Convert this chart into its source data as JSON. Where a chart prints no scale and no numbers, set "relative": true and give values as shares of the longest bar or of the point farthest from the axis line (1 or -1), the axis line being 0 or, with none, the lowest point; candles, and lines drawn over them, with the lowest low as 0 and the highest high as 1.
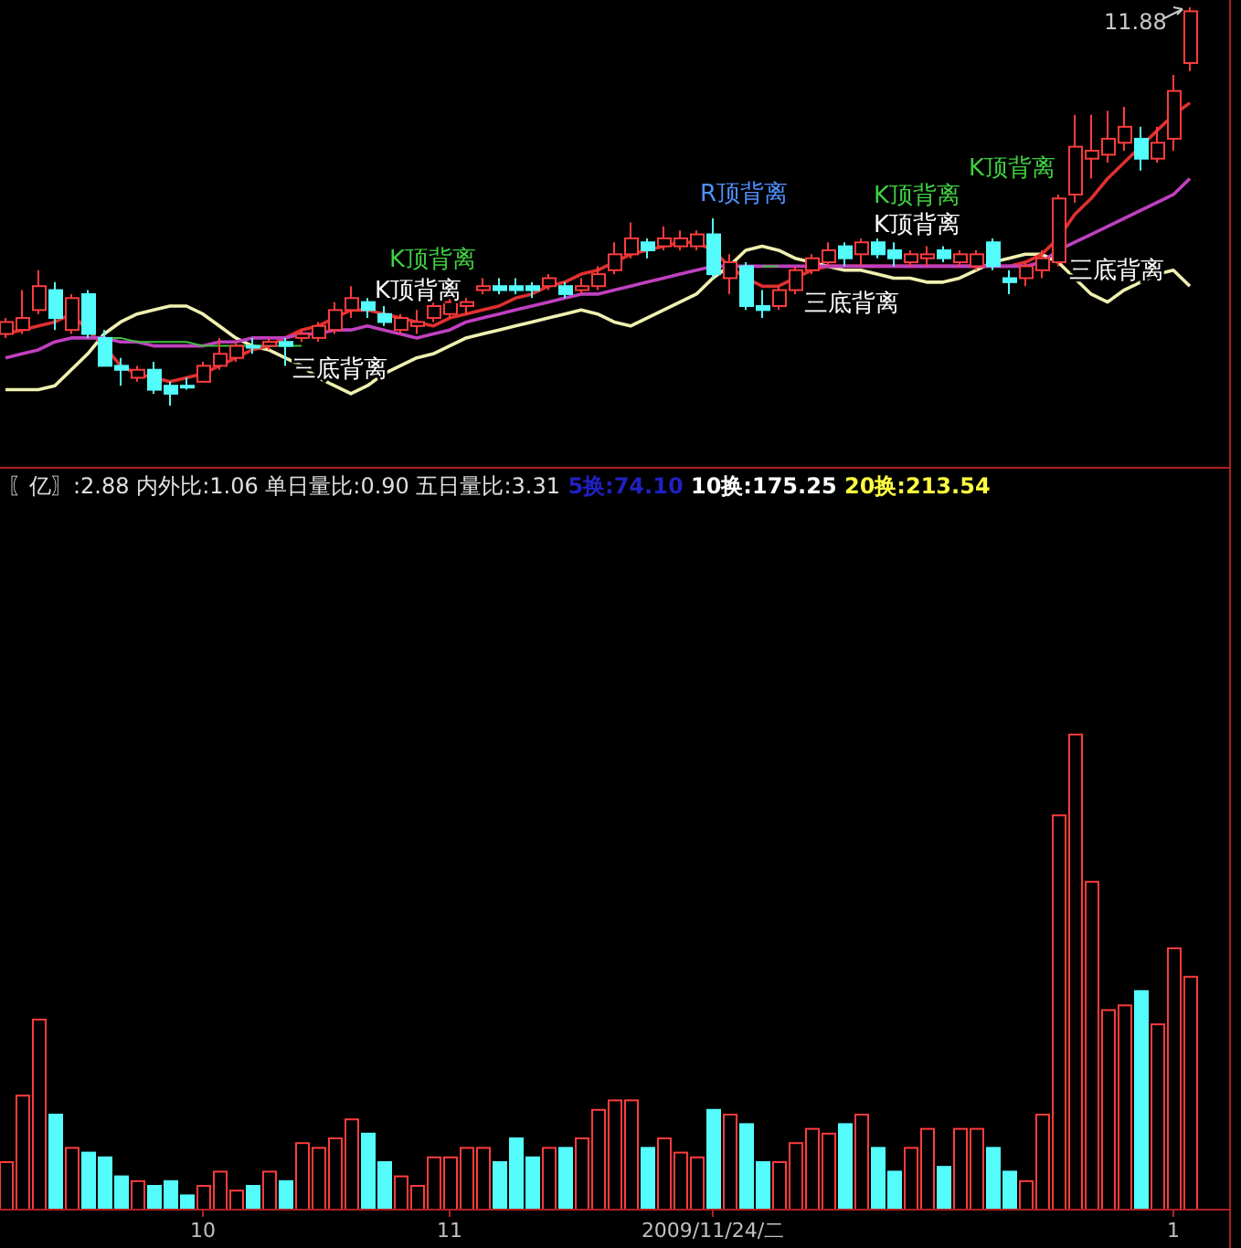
{
  "chart_data": [
    {
      "type": "candlestick",
      "relative": true,
      "categories": [
        null,
        null,
        null,
        null,
        null,
        null,
        null,
        null,
        null,
        null,
        null,
        null,
        null,
        null,
        null,
        null,
        null,
        null,
        null,
        null,
        null,
        null,
        null,
        null,
        null,
        null,
        null,
        null,
        null,
        null,
        null,
        null,
        null,
        null,
        null,
        null,
        null,
        null,
        null,
        null,
        null,
        null,
        null,
        null,
        null,
        null,
        null,
        null,
        null,
        null,
        null,
        null,
        null,
        null,
        null,
        null,
        null,
        null,
        null,
        null,
        null,
        null,
        null,
        null,
        null,
        null,
        null,
        null,
        null,
        null,
        null,
        null,
        null
      ],
      "ohlc": [
        [
          0.18,
          0.22,
          0.17,
          0.21
        ],
        [
          0.19,
          0.29,
          0.18,
          0.22
        ],
        [
          0.24,
          0.34,
          0.23,
          0.3
        ],
        [
          0.29,
          0.31,
          0.19,
          0.22
        ],
        [
          0.19,
          0.28,
          0.18,
          0.27
        ],
        [
          0.28,
          0.29,
          0.17,
          0.18
        ],
        [
          0.17,
          0.19,
          0.1,
          0.1
        ],
        [
          0.1,
          0.12,
          0.05,
          0.09
        ],
        [
          0.07,
          0.1,
          0.06,
          0.09
        ],
        [
          0.09,
          0.11,
          0.03,
          0.04
        ],
        [
          0.05,
          0.06,
          0,
          0.03
        ],
        [
          0.05,
          0.07,
          0.04,
          0.05
        ],
        [
          0.06,
          0.11,
          0.06,
          0.1
        ],
        [
          0.1,
          0.17,
          0.09,
          0.13
        ],
        [
          0.12,
          0.16,
          0.11,
          0.15
        ],
        [
          0.15,
          0.17,
          0.13,
          0.15
        ],
        [
          0.15,
          0.17,
          0.14,
          0.16
        ],
        [
          0.16,
          0.17,
          0.1,
          0.15
        ],
        [
          0.17,
          0.19,
          0.16,
          0.18
        ],
        [
          0.17,
          0.21,
          0.16,
          0.2
        ],
        [
          0.19,
          0.26,
          0.18,
          0.24
        ],
        [
          0.24,
          0.3,
          0.22,
          0.27
        ],
        [
          0.26,
          0.27,
          0.22,
          0.24
        ],
        [
          0.23,
          0.25,
          0.2,
          0.21
        ],
        [
          0.19,
          0.23,
          0.18,
          0.22
        ],
        [
          0.2,
          0.24,
          0.18,
          0.21
        ],
        [
          0.22,
          0.26,
          0.21,
          0.25
        ],
        [
          0.23,
          0.28,
          0.22,
          0.26
        ],
        [
          0.25,
          0.27,
          0.23,
          0.26
        ],
        [
          0.29,
          0.32,
          0.28,
          0.3
        ],
        [
          0.3,
          0.32,
          0.28,
          0.29
        ],
        [
          0.3,
          0.32,
          0.28,
          0.29
        ],
        [
          0.3,
          0.31,
          0.27,
          0.29
        ],
        [
          0.3,
          0.33,
          0.29,
          0.32
        ],
        [
          0.3,
          0.31,
          0.27,
          0.28
        ],
        [
          0.29,
          0.32,
          0.28,
          0.3
        ],
        [
          0.3,
          0.35,
          0.29,
          0.33
        ],
        [
          0.34,
          0.41,
          0.33,
          0.38
        ],
        [
          0.38,
          0.46,
          0.37,
          0.42
        ],
        [
          0.41,
          0.42,
          0.37,
          0.39
        ],
        [
          0.4,
          0.45,
          0.39,
          0.42
        ],
        [
          0.4,
          0.44,
          0.39,
          0.42
        ],
        [
          0.4,
          0.44,
          0.39,
          0.43
        ],
        [
          0.43,
          0.47,
          0.32,
          0.33
        ],
        [
          0.32,
          0.38,
          0.28,
          0.36
        ],
        [
          0.35,
          0.36,
          0.24,
          0.25
        ],
        [
          0.25,
          0.29,
          0.22,
          0.24
        ],
        [
          0.25,
          0.3,
          0.24,
          0.29
        ],
        [
          0.29,
          0.35,
          0.28,
          0.34
        ],
        [
          0.34,
          0.38,
          0.33,
          0.37
        ],
        [
          0.36,
          0.41,
          0.35,
          0.39
        ],
        [
          0.4,
          0.41,
          0.35,
          0.37
        ],
        [
          0.38,
          0.42,
          0.35,
          0.41
        ],
        [
          0.41,
          0.42,
          0.37,
          0.38
        ],
        [
          0.39,
          0.41,
          0.35,
          0.37
        ],
        [
          0.36,
          0.39,
          0.35,
          0.38
        ],
        [
          0.37,
          0.4,
          0.35,
          0.38
        ],
        [
          0.39,
          0.4,
          0.36,
          0.37
        ],
        [
          0.36,
          0.39,
          0.35,
          0.38
        ],
        [
          0.35,
          0.39,
          0.34,
          0.38
        ],
        [
          0.41,
          0.42,
          0.34,
          0.35
        ],
        [
          0.32,
          0.34,
          0.28,
          0.31
        ],
        [
          0.32,
          0.36,
          0.3,
          0.35
        ],
        [
          0.34,
          0.39,
          0.32,
          0.37
        ],
        [
          0.36,
          0.53,
          0.35,
          0.52
        ],
        [
          0.53,
          0.73,
          0.51,
          0.65
        ],
        [
          0.62,
          0.73,
          0.57,
          0.64
        ],
        [
          0.63,
          0.74,
          0.61,
          0.67
        ],
        [
          0.66,
          0.75,
          0.64,
          0.7
        ],
        [
          0.67,
          0.7,
          0.59,
          0.62
        ],
        [
          0.62,
          0.7,
          0.61,
          0.66
        ],
        [
          0.67,
          0.83,
          0.64,
          0.79
        ],
        [
          0.86,
          1,
          0.84,
          0.99
        ]
      ],
      "series": [
        {
          "type": "line",
          "color": "#f0f0b0",
          "values": [
            0.04,
            0.04,
            0.04,
            0.05,
            0.09,
            0.13,
            0.18,
            0.21,
            0.23,
            0.24,
            0.25,
            0.25,
            0.23,
            0.2,
            0.17,
            0.15,
            0.14,
            0.12,
            0.1,
            0.07,
            0.05,
            0.03,
            0.05,
            0.08,
            0.1,
            0.12,
            0.13,
            0.15,
            0.17,
            0.18,
            0.19,
            0.2,
            0.21,
            0.22,
            0.23,
            0.24,
            0.23,
            0.21,
            0.2,
            0.22,
            0.24,
            0.26,
            0.28,
            0.32,
            0.35,
            0.39,
            0.4,
            0.39,
            0.37,
            0.36,
            0.35,
            0.34,
            0.34,
            0.33,
            0.32,
            0.32,
            0.31,
            0.31,
            0.32,
            0.34,
            0.36,
            0.37,
            0.38,
            0.38,
            0.36,
            0.32,
            0.28,
            0.26,
            0.29,
            0.31,
            0.33,
            0.34,
            0.3
          ]
        },
        {
          "type": "line",
          "color": "#e03030",
          "values": [
            0.18,
            0.19,
            0.2,
            0.21,
            0.23,
            0.19,
            0.15,
            0.1,
            0.08,
            0.07,
            0.06,
            0.07,
            0.08,
            0.1,
            0.12,
            0.14,
            0.15,
            0.17,
            0.19,
            0.2,
            0.22,
            0.24,
            0.24,
            0.23,
            0.22,
            0.21,
            0.2,
            0.22,
            0.23,
            0.24,
            0.25,
            0.27,
            0.28,
            0.3,
            0.31,
            0.33,
            0.34,
            0.36,
            0.38,
            0.39,
            0.4,
            0.41,
            0.41,
            0.39,
            0.35,
            0.32,
            0.3,
            0.3,
            0.32,
            0.34,
            0.35,
            0.35,
            0.35,
            0.35,
            0.35,
            0.35,
            0.35,
            0.35,
            0.35,
            0.35,
            0.35,
            0.35,
            0.36,
            0.38,
            0.42,
            0.48,
            0.52,
            0.57,
            0.61,
            0.65,
            0.69,
            0.73,
            0.76
          ]
        },
        {
          "type": "line",
          "color": "#c040c0",
          "values": [
            0.12,
            0.13,
            0.14,
            0.16,
            0.17,
            0.17,
            0.17,
            0.16,
            0.16,
            0.15,
            0.15,
            0.15,
            0.15,
            0.16,
            0.16,
            0.17,
            0.17,
            0.17,
            0.18,
            0.18,
            0.19,
            0.19,
            0.2,
            0.19,
            0.18,
            0.17,
            0.18,
            0.19,
            0.21,
            0.22,
            0.23,
            0.24,
            0.25,
            0.26,
            0.27,
            0.28,
            0.28,
            0.29,
            0.3,
            0.31,
            0.32,
            0.33,
            0.34,
            0.35,
            0.35,
            0.35,
            0.35,
            0.35,
            0.35,
            0.35,
            0.35,
            0.35,
            0.35,
            0.35,
            0.35,
            0.35,
            0.35,
            0.35,
            0.35,
            0.35,
            0.35,
            0.35,
            0.35,
            0.36,
            0.39,
            0.41,
            0.43,
            0.45,
            0.47,
            0.49,
            0.51,
            0.53,
            0.57
          ]
        },
        {
          "type": "line",
          "color": "#40c040",
          "values": [
            null,
            null,
            null,
            null,
            null,
            null,
            0.17,
            0.17,
            0.16,
            0.16,
            0.16,
            0.16,
            0.15,
            0.15,
            0.15,
            0.15,
            0.15,
            0.15,
            0.15,
            null,
            null,
            null,
            null,
            null,
            null,
            null,
            null,
            null,
            null,
            null,
            null,
            null,
            null,
            null,
            null,
            null,
            null,
            null,
            null,
            null,
            null,
            null,
            null,
            null,
            null,
            null,
            0.35,
            0.35,
            null,
            null,
            null,
            null,
            null,
            null,
            null,
            null,
            null,
            null,
            null,
            null,
            null,
            null,
            null,
            null,
            null,
            null,
            null,
            null,
            null,
            null,
            null,
            null,
            null
          ]
        }
      ],
      "annotations": [
        "11.88",
        "三底背离",
        "K顶背离",
        "K顶背离",
        "R顶背离",
        "K顶背离",
        "K顶背离",
        "K顶背离",
        "三底背离",
        "三底背离"
      ]
    },
    {
      "type": "bar",
      "relative": true,
      "title": "〖亿〗:2.88 内外比:1.06 单日量比:0.90 五日量比:3.31",
      "annotations": [
        "5换:74.10",
        "10换:175.25",
        "20换:213.54"
      ],
      "categories": [
        null,
        null,
        null,
        null,
        null,
        null,
        null,
        null,
        null,
        null,
        null,
        null,
        "10",
        null,
        null,
        null,
        null,
        null,
        null,
        null,
        null,
        null,
        null,
        null,
        null,
        null,
        null,
        "11",
        null,
        null,
        null,
        null,
        null,
        null,
        null,
        null,
        null,
        null,
        null,
        null,
        null,
        null,
        null,
        "2009/11/24/二",
        null,
        null,
        null,
        null,
        null,
        null,
        null,
        null,
        null,
        null,
        null,
        null,
        null,
        null,
        null,
        null,
        null,
        null,
        null,
        null,
        null,
        null,
        null,
        null,
        null,
        null,
        null,
        "1",
        null
      ],
      "values": [
        0.1,
        0.24,
        0.4,
        0.2,
        0.13,
        0.12,
        0.11,
        0.07,
        0.06,
        0.05,
        0.06,
        0.03,
        0.05,
        0.08,
        0.04,
        0.05,
        0.08,
        0.06,
        0.14,
        0.13,
        0.15,
        0.19,
        0.16,
        0.1,
        0.07,
        0.05,
        0.11,
        0.11,
        0.13,
        0.13,
        0.1,
        0.15,
        0.11,
        0.13,
        0.13,
        0.15,
        0.21,
        0.23,
        0.23,
        0.13,
        0.15,
        0.12,
        0.11,
        0.21,
        0.2,
        0.18,
        0.1,
        0.1,
        0.14,
        0.17,
        0.16,
        0.18,
        0.2,
        0.13,
        0.08,
        0.13,
        0.17,
        0.09,
        0.17,
        0.17,
        0.13,
        0.08,
        0.06,
        0.2,
        0.83,
        1,
        0.69,
        0.42,
        0.43,
        0.46,
        0.39,
        0.55,
        0.49
      ],
      "colors": [
        "#ff3c3c",
        "#ff3c3c",
        "#ff3c3c",
        "#54fcfc",
        "#ff3c3c",
        "#54fcfc",
        "#54fcfc",
        "#54fcfc",
        "#ff3c3c",
        "#54fcfc",
        "#54fcfc",
        "#54fcfc",
        "#ff3c3c",
        "#ff3c3c",
        "#ff3c3c",
        "#54fcfc",
        "#ff3c3c",
        "#54fcfc",
        "#ff3c3c",
        "#ff3c3c",
        "#ff3c3c",
        "#ff3c3c",
        "#54fcfc",
        "#54fcfc",
        "#ff3c3c",
        "#ff3c3c",
        "#ff3c3c",
        "#ff3c3c",
        "#ff3c3c",
        "#ff3c3c",
        "#54fcfc",
        "#54fcfc",
        "#54fcfc",
        "#ff3c3c",
        "#54fcfc",
        "#ff3c3c",
        "#ff3c3c",
        "#ff3c3c",
        "#ff3c3c",
        "#54fcfc",
        "#ff3c3c",
        "#ff3c3c",
        "#ff3c3c",
        "#54fcfc",
        "#ff3c3c",
        "#54fcfc",
        "#54fcfc",
        "#ff3c3c",
        "#ff3c3c",
        "#ff3c3c",
        "#ff3c3c",
        "#54fcfc",
        "#ff3c3c",
        "#54fcfc",
        "#54fcfc",
        "#ff3c3c",
        "#ff3c3c",
        "#54fcfc",
        "#ff3c3c",
        "#ff3c3c",
        "#54fcfc",
        "#54fcfc",
        "#ff3c3c",
        "#ff3c3c",
        "#ff3c3c",
        "#ff3c3c",
        "#ff3c3c",
        "#ff3c3c",
        "#ff3c3c",
        "#54fcfc",
        "#ff3c3c",
        "#ff3c3c",
        "#ff3c3c"
      ]
    }
  ]
}
